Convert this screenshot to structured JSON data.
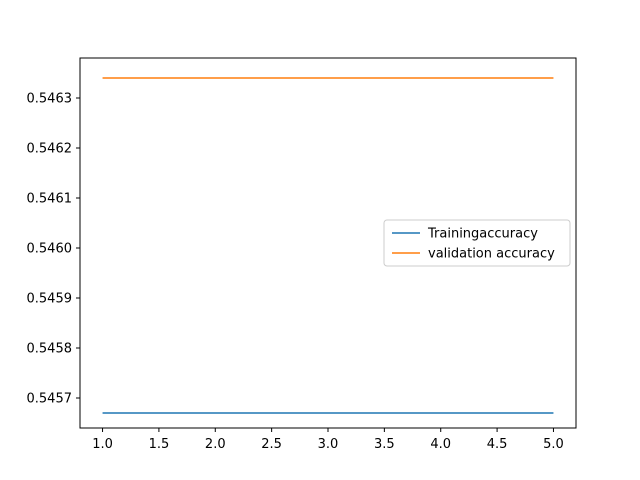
{
  "chart_data": {
    "type": "line",
    "title": "",
    "xlabel": "",
    "ylabel": "",
    "x": [
      1,
      2,
      3,
      4,
      5
    ],
    "xlim": [
      0.8,
      5.2
    ],
    "ylim": [
      0.54564,
      0.54638
    ],
    "xticks": [
      1.0,
      1.5,
      2.0,
      2.5,
      3.0,
      3.5,
      4.0,
      4.5,
      5.0
    ],
    "xtick_labels": [
      "1.0",
      "1.5",
      "2.0",
      "2.5",
      "3.0",
      "3.5",
      "4.0",
      "4.5",
      "5.0"
    ],
    "yticks": [
      0.5457,
      0.5458,
      0.5459,
      0.546,
      0.5461,
      0.5462,
      0.5463
    ],
    "ytick_labels": [
      "0.5457",
      "0.5458",
      "0.5459",
      "0.5460",
      "0.5461",
      "0.5462",
      "0.5463"
    ],
    "grid": false,
    "legend_position": "center-right",
    "series": [
      {
        "name": "Trainingaccuracy",
        "color": "#1f77b4",
        "values": [
          0.54567,
          0.54567,
          0.54567,
          0.54567,
          0.54567
        ]
      },
      {
        "name": "validation accuracy",
        "color": "#ff7f0e",
        "values": [
          0.54634,
          0.54634,
          0.54634,
          0.54634,
          0.54634
        ]
      }
    ]
  }
}
